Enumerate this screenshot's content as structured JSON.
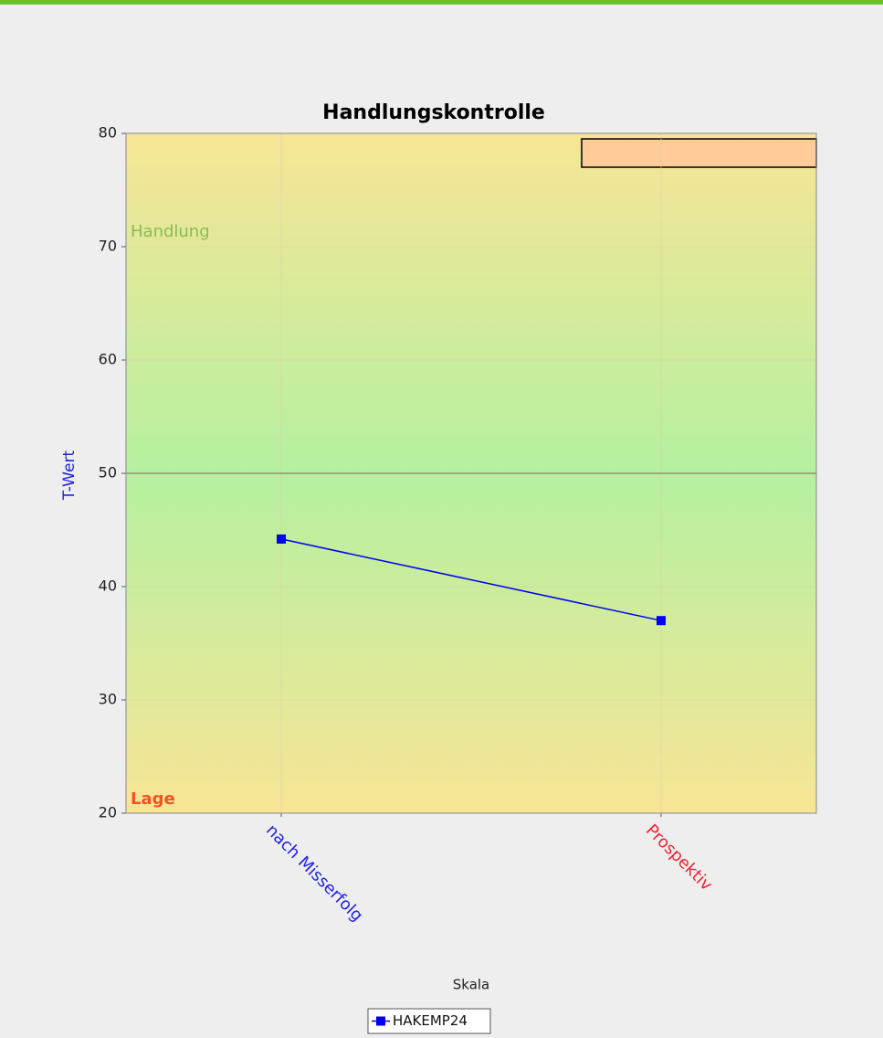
{
  "chart_data": {
    "type": "line",
    "title": "Handlungskontrolle",
    "x_label": "Skala",
    "y_label": "T-Wert",
    "categories": [
      "nach Misserfolg",
      "Prospektiv"
    ],
    "category_colors": [
      "#2222dd",
      "#ee2233"
    ],
    "series": [
      {
        "name": "HAKEMP24",
        "color": "#0000ee",
        "values": [
          44.2,
          37
        ]
      }
    ],
    "ylim": [
      20,
      80
    ],
    "yticks": [
      20,
      30,
      40,
      50,
      60,
      70,
      80
    ],
    "reference_line": 50,
    "annotations": [
      {
        "text": "Handlung",
        "color": "#88bb55"
      },
      {
        "text": "Lage",
        "color": "#ee5522"
      }
    ],
    "grid": true
  }
}
